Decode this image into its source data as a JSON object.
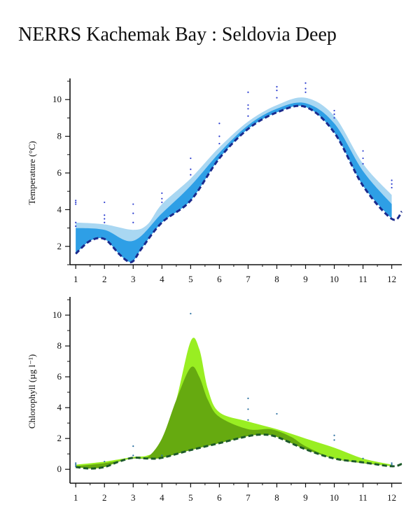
{
  "page": {
    "title": "NERRS Kachemak Bay : Seldovia Deep"
  },
  "chart_data": [
    {
      "type": "area",
      "ylabel": "Temperature (°C)",
      "ylabel_text": "Temperature (°C)",
      "xlim": [
        0.8,
        12.35
      ],
      "ylim": [
        1,
        11
      ],
      "x_ticks": [
        1,
        2,
        3,
        4,
        5,
        6,
        7,
        8,
        9,
        10,
        11,
        12
      ],
      "y_ticks": [
        2,
        4,
        6,
        8,
        10
      ],
      "colors": {
        "upper_band": "#a9d7f2",
        "lower_band": "#2e9fe6",
        "mean_line": "#1a2a8c",
        "points": "#2d3fd0"
      },
      "upper_band": {
        "x": [
          1,
          2,
          3,
          3.5,
          4,
          5,
          6,
          7,
          8,
          9,
          10,
          11,
          12
        ],
        "values": [
          3.3,
          3.2,
          2.9,
          3.2,
          4.3,
          5.7,
          7.4,
          8.8,
          9.7,
          10.1,
          9.1,
          6.5,
          4.8
        ]
      },
      "lower_band": {
        "x": [
          1,
          2,
          3,
          4,
          5,
          6,
          7,
          8,
          9,
          10,
          11,
          12
        ],
        "values": [
          3.0,
          2.9,
          2.3,
          3.8,
          5.3,
          7.1,
          8.6,
          9.5,
          9.8,
          8.7,
          6.1,
          4.3
        ]
      },
      "mean_line": {
        "x": [
          1,
          1.5,
          2,
          2.5,
          2.8,
          3,
          3.3,
          4,
          5,
          6,
          7,
          8,
          9,
          10,
          11,
          12,
          12.35
        ],
        "values": [
          1.6,
          2.3,
          2.4,
          1.6,
          1.2,
          1.2,
          1.9,
          3.3,
          4.5,
          6.8,
          8.4,
          9.3,
          9.6,
          8.2,
          5.3,
          3.5,
          3.9
        ]
      },
      "points": [
        {
          "x": 1,
          "y": 4.4
        },
        {
          "x": 1,
          "y": 4.5
        },
        {
          "x": 1,
          "y": 4.3
        },
        {
          "x": 1,
          "y": 3.3
        },
        {
          "x": 1,
          "y": 3.1
        },
        {
          "x": 2,
          "y": 4.4
        },
        {
          "x": 2,
          "y": 3.7
        },
        {
          "x": 2,
          "y": 3.5
        },
        {
          "x": 2,
          "y": 3.3
        },
        {
          "x": 3,
          "y": 4.3
        },
        {
          "x": 3,
          "y": 3.8
        },
        {
          "x": 3,
          "y": 3.3
        },
        {
          "x": 4,
          "y": 4.9
        },
        {
          "x": 4,
          "y": 4.6
        },
        {
          "x": 4,
          "y": 4.4
        },
        {
          "x": 5,
          "y": 6.8
        },
        {
          "x": 5,
          "y": 6.2
        },
        {
          "x": 5,
          "y": 5.9
        },
        {
          "x": 6,
          "y": 8.7
        },
        {
          "x": 6,
          "y": 8.0
        },
        {
          "x": 6,
          "y": 7.6
        },
        {
          "x": 7,
          "y": 10.4
        },
        {
          "x": 7,
          "y": 9.7
        },
        {
          "x": 7,
          "y": 9.5
        },
        {
          "x": 7,
          "y": 9.1
        },
        {
          "x": 8,
          "y": 10.7
        },
        {
          "x": 8,
          "y": 10.5
        },
        {
          "x": 8,
          "y": 10.1
        },
        {
          "x": 9,
          "y": 10.9
        },
        {
          "x": 9,
          "y": 10.6
        },
        {
          "x": 9,
          "y": 10.4
        },
        {
          "x": 10,
          "y": 9.4
        },
        {
          "x": 10,
          "y": 9.2
        },
        {
          "x": 10,
          "y": 9.0
        },
        {
          "x": 11,
          "y": 7.2
        },
        {
          "x": 11,
          "y": 6.8
        },
        {
          "x": 11,
          "y": 6.5
        },
        {
          "x": 12,
          "y": 5.6
        },
        {
          "x": 12,
          "y": 5.4
        },
        {
          "x": 12,
          "y": 5.2
        }
      ]
    },
    {
      "type": "area",
      "ylabel": "Chlorophyll (µg l⁻¹)",
      "ylabel_text": "Chlorophyll (µg l⁻¹)",
      "xlim": [
        0.8,
        12.35
      ],
      "ylim": [
        -0.9,
        11
      ],
      "x_ticks": [
        1,
        2,
        3,
        4,
        5,
        6,
        7,
        8,
        9,
        10,
        11,
        12
      ],
      "y_ticks": [
        0,
        2,
        4,
        6,
        8,
        10
      ],
      "colors": {
        "upper_band": "#99ee22",
        "lower_band": "#66aa10",
        "mean_line": "#1d5a2a",
        "points": "#2a6fa0"
      },
      "upper_band": {
        "x": [
          1,
          2,
          3,
          3.5,
          4,
          4.5,
          5,
          5.3,
          5.6,
          6,
          7,
          8,
          9,
          10,
          11,
          12
        ],
        "values": [
          0.3,
          0.5,
          0.8,
          0.9,
          1.5,
          4.5,
          8.3,
          7.8,
          5.2,
          3.7,
          3.1,
          2.6,
          2.0,
          1.4,
          0.7,
          0.3
        ]
      },
      "lower_band": {
        "x": [
          1,
          2,
          3,
          3.5,
          4,
          4.5,
          5,
          5.3,
          5.6,
          6,
          7,
          7.8,
          8.5,
          9,
          10,
          11,
          12
        ],
        "values": [
          0.2,
          0.4,
          0.7,
          0.8,
          2.0,
          4.5,
          6.6,
          6.0,
          4.5,
          3.4,
          2.6,
          2.6,
          2.1,
          1.5,
          0.7,
          0.4,
          0.2
        ]
      },
      "mean_line": {
        "x": [
          1,
          1.5,
          2,
          2.5,
          3,
          3.5,
          4,
          5,
          6,
          7,
          7.5,
          8,
          9,
          10,
          11,
          12,
          12.35
        ],
        "values": [
          0.15,
          0.05,
          0.15,
          0.5,
          0.75,
          0.7,
          0.75,
          1.25,
          1.7,
          2.15,
          2.25,
          2.1,
          1.3,
          0.7,
          0.45,
          0.2,
          0.35
        ]
      },
      "points": [
        {
          "x": 1,
          "y": 0.4
        },
        {
          "x": 1,
          "y": 0.3
        },
        {
          "x": 1,
          "y": 0.2
        },
        {
          "x": 2,
          "y": 0.5
        },
        {
          "x": 3,
          "y": 1.5
        },
        {
          "x": 3,
          "y": 0.9
        },
        {
          "x": 4,
          "y": 0.9
        },
        {
          "x": 5,
          "y": 10.1
        },
        {
          "x": 7,
          "y": 4.6
        },
        {
          "x": 7,
          "y": 3.9
        },
        {
          "x": 7,
          "y": 3.2
        },
        {
          "x": 8,
          "y": 3.6
        },
        {
          "x": 10,
          "y": 2.2
        },
        {
          "x": 10,
          "y": 1.9
        },
        {
          "x": 11,
          "y": 0.7
        },
        {
          "x": 12,
          "y": 0.4
        },
        {
          "x": 12,
          "y": 0.3
        }
      ]
    }
  ]
}
